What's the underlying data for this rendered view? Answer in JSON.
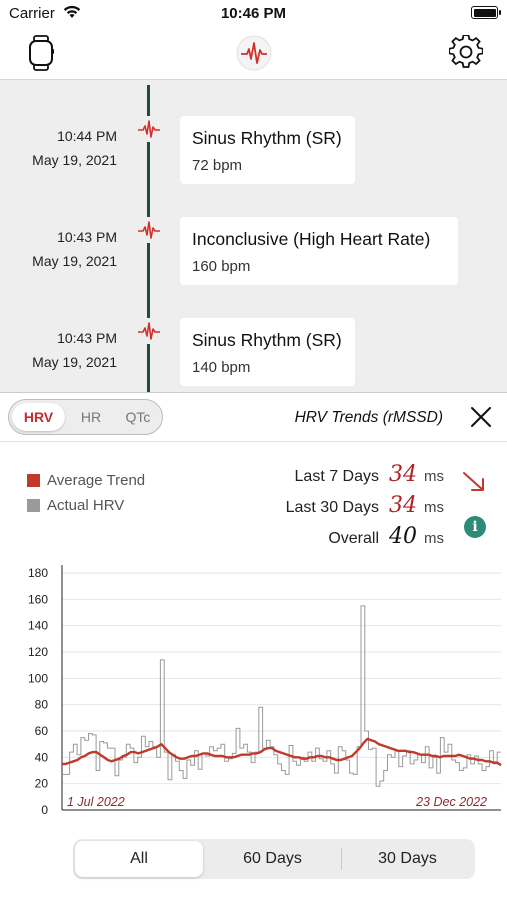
{
  "status_bar": {
    "carrier": "Carrier",
    "time": "10:46 PM"
  },
  "timeline": {
    "entries": [
      {
        "time": "10:44 PM",
        "date": "May 19, 2021",
        "title": "Sinus Rhythm (SR)",
        "bpm": "72 bpm"
      },
      {
        "time": "10:43 PM",
        "date": "May 19, 2021",
        "title": "Inconclusive (High Heart Rate)",
        "bpm": "160 bpm"
      },
      {
        "time": "10:43 PM",
        "date": "May 19, 2021",
        "title": "Sinus Rhythm (SR)",
        "bpm": "140 bpm"
      }
    ]
  },
  "trends": {
    "tabs": [
      "HRV",
      "HR",
      "QTc"
    ],
    "active_tab": "HRV",
    "title": "HRV Trends (rMSSD)",
    "legend": {
      "average": "Average Trend",
      "actual": "Actual HRV"
    },
    "stats": [
      {
        "label": "Last 7 Days",
        "value": "34",
        "unit": "ms",
        "color": "#b22222"
      },
      {
        "label": "Last 30 Days",
        "value": "34",
        "unit": "ms",
        "color": "#b22222"
      },
      {
        "label": "Overall",
        "value": "40",
        "unit": "ms",
        "color": "#111111"
      }
    ],
    "trend_direction": "down",
    "info_icon": "i"
  },
  "chart_data": {
    "type": "line",
    "y_ticks": [
      "180",
      "160",
      "140",
      "120",
      "100",
      "80",
      "60",
      "40",
      "20",
      "0"
    ],
    "ylim": [
      0,
      180
    ],
    "grid": true,
    "x_start_label": "1 Jul 2022",
    "x_end_label": "23 Dec 2022",
    "series": [
      {
        "name": "Actual HRV",
        "color": "#9a9a9a",
        "style": "step",
        "values": [
          27,
          27,
          44,
          50,
          42,
          55,
          53,
          58,
          57,
          30,
          52,
          51,
          47,
          47,
          26,
          38,
          40,
          50,
          47,
          36,
          40,
          56,
          48,
          52,
          48,
          40,
          114,
          44,
          23,
          42,
          37,
          30,
          24,
          38,
          34,
          45,
          31,
          43,
          41,
          48,
          45,
          47,
          50,
          37,
          39,
          43,
          62,
          47,
          50,
          44,
          36,
          44,
          78,
          47,
          53,
          48,
          42,
          35,
          30,
          27,
          49,
          37,
          34,
          40,
          37,
          44,
          37,
          47,
          39,
          37,
          45,
          35,
          28,
          48,
          45,
          38,
          28,
          27,
          48,
          155,
          60,
          46,
          47,
          18,
          22,
          30,
          42,
          40,
          45,
          33,
          41,
          45,
          35,
          38,
          42,
          36,
          48,
          32,
          40,
          28,
          55,
          44,
          50,
          38,
          36,
          30,
          32,
          42,
          35,
          41,
          35,
          30,
          33,
          45,
          35,
          44
        ]
      },
      {
        "name": "Average Trend",
        "color": "#c0392b",
        "style": "line",
        "values": [
          35,
          35,
          36,
          37,
          38,
          40,
          41,
          43,
          44,
          44,
          42,
          40,
          38,
          37,
          38,
          39,
          41,
          42,
          44,
          44,
          43,
          44,
          45,
          46,
          47,
          48,
          50,
          47,
          44,
          42,
          40,
          39,
          39,
          40,
          41,
          41,
          42,
          43,
          43,
          42,
          41,
          41,
          41,
          40,
          40,
          40,
          41,
          42,
          42,
          42,
          43,
          43,
          44,
          46,
          47,
          47,
          45,
          44,
          43,
          42,
          41,
          40,
          40,
          39,
          39,
          40,
          40,
          41,
          41,
          40,
          40,
          39,
          38,
          38,
          39,
          40,
          41,
          44,
          47,
          51,
          54,
          53,
          52,
          50,
          49,
          48,
          47,
          46,
          45,
          45,
          45,
          44,
          44,
          43,
          42,
          42,
          42,
          41,
          41,
          40,
          41,
          41,
          41,
          41,
          42,
          41,
          40,
          39,
          39,
          38,
          38,
          37,
          37,
          36,
          36,
          34
        ]
      }
    ]
  },
  "range_selector": {
    "options": [
      "All",
      "60 Days",
      "30 Days"
    ],
    "active": "All"
  },
  "colors": {
    "accent": "#c92a2a",
    "timeline_line": "#1f4d3a",
    "info": "#2e8b77"
  }
}
